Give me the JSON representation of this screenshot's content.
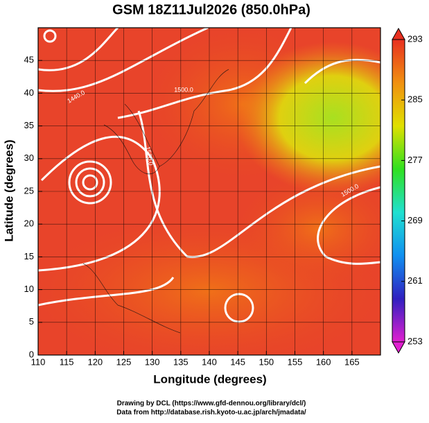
{
  "chart_data": {
    "type": "map",
    "title": "GSM 18Z11Jul2026 (850.0hPa)",
    "xlabel": "Longitude (degrees)",
    "ylabel": "Latitude  (degrees)",
    "xlim": [
      110,
      170
    ],
    "ylim": [
      0,
      50
    ],
    "xticks": [
      110,
      115,
      120,
      125,
      130,
      135,
      140,
      145,
      150,
      155,
      160,
      165
    ],
    "yticks": [
      0,
      5,
      10,
      15,
      20,
      25,
      30,
      35,
      40,
      45
    ],
    "grid": true,
    "colorbar": {
      "lim": [
        253,
        293
      ],
      "ticks": [
        253,
        261,
        269,
        277,
        285,
        293
      ],
      "colors": [
        "#e020d0",
        "#3020c0",
        "#1090f0",
        "#20e0d0",
        "#30e020",
        "#e0e000",
        "#f09010",
        "#e83020"
      ]
    },
    "contour_labels": [
      "1440.0",
      "1500.0",
      "1520.0",
      "1500.0"
    ],
    "credits": [
      "Drawing by DCL (https://www.gfd-dennou.org/library/dcl/)",
      "Data from http://database.rish.kyoto-u.ac.jp/arch/jmadata/"
    ]
  }
}
